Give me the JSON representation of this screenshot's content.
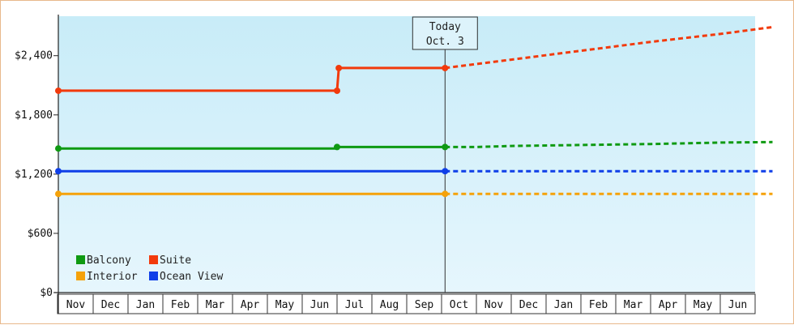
{
  "chart_data": {
    "type": "line",
    "title": "",
    "xlabel": "",
    "ylabel": "",
    "ylim": [
      0,
      2800
    ],
    "y_ticks": [
      {
        "value": 0,
        "label": "$0"
      },
      {
        "value": 600,
        "label": "$600"
      },
      {
        "value": 1200,
        "label": "$1,200"
      },
      {
        "value": 1800,
        "label": "$1,800"
      },
      {
        "value": 2400,
        "label": "$2,400"
      }
    ],
    "categories": [
      "Nov",
      "Dec",
      "Jan",
      "Feb",
      "Mar",
      "Apr",
      "May",
      "Jun",
      "Jul",
      "Aug",
      "Sep",
      "Oct",
      "Nov",
      "Dec",
      "Jan",
      "Feb",
      "Mar",
      "Apr",
      "May",
      "Jun"
    ],
    "today": {
      "line1": "Today",
      "line2": "Oct. 3",
      "x_month_index": 11.1
    },
    "grid": false,
    "background": [
      "#c8ecf8",
      "#e6f6fd"
    ],
    "legend_position": "bottom-left",
    "series": [
      {
        "name": "Balcony",
        "color": "#0f9a12",
        "actual": [
          [
            0,
            1460
          ],
          [
            8,
            1460
          ],
          [
            8,
            1475
          ],
          [
            11.1,
            1475
          ]
        ],
        "forecast": [
          [
            11.1,
            1475
          ],
          [
            12,
            1475
          ],
          [
            13,
            1485
          ],
          [
            15,
            1495
          ],
          [
            17,
            1505
          ],
          [
            19,
            1520
          ],
          [
            20.5,
            1525
          ]
        ],
        "markers": [
          [
            0,
            1460
          ],
          [
            8,
            1475
          ],
          [
            11.1,
            1475
          ]
        ]
      },
      {
        "name": "Suite",
        "color": "#f23a0c",
        "actual": [
          [
            0,
            2045
          ],
          [
            8,
            2045
          ],
          [
            8.05,
            2275
          ],
          [
            11.1,
            2275
          ]
        ],
        "forecast": [
          [
            11.1,
            2275
          ],
          [
            13,
            2360
          ],
          [
            15,
            2450
          ],
          [
            17,
            2540
          ],
          [
            19,
            2620
          ],
          [
            20.5,
            2690
          ]
        ],
        "markers": [
          [
            0,
            2045
          ],
          [
            8,
            2045
          ],
          [
            8.05,
            2275
          ],
          [
            11.1,
            2275
          ]
        ]
      },
      {
        "name": "Interior",
        "color": "#f5a20a",
        "actual": [
          [
            0,
            1000
          ],
          [
            11.1,
            1000
          ]
        ],
        "forecast": [
          [
            11.1,
            1000
          ],
          [
            20.5,
            1000
          ]
        ],
        "markers": [
          [
            0,
            1000
          ],
          [
            11.1,
            1000
          ]
        ]
      },
      {
        "name": "Ocean View",
        "color": "#0f3fe8",
        "actual": [
          [
            0,
            1230
          ],
          [
            11.1,
            1230
          ]
        ],
        "forecast": [
          [
            11.1,
            1230
          ],
          [
            20.5,
            1230
          ]
        ],
        "markers": [
          [
            0,
            1230
          ],
          [
            11.1,
            1230
          ]
        ]
      }
    ],
    "legend": [
      {
        "name": "Balcony",
        "color": "#0f9a12"
      },
      {
        "name": "Suite",
        "color": "#f23a0c"
      },
      {
        "name": "Interior",
        "color": "#f5a20a"
      },
      {
        "name": "Ocean View",
        "color": "#0f3fe8"
      }
    ]
  }
}
